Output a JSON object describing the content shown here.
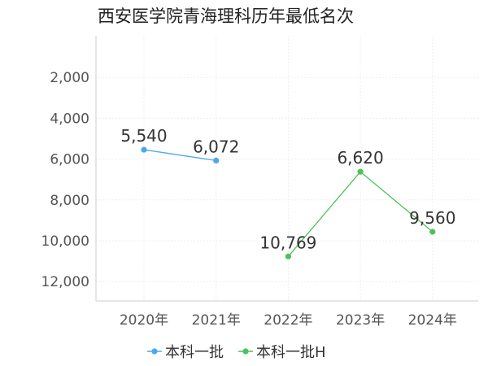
{
  "chart_data": {
    "type": "line",
    "title": "西安医学院青海理科历年最低名次",
    "categories": [
      "2020年",
      "2021年",
      "2022年",
      "2023年",
      "2024年"
    ],
    "series": [
      {
        "name": "本科一批",
        "color": "#4da6f0",
        "values": [
          5540,
          6072,
          null,
          null,
          null
        ]
      },
      {
        "name": "本科一批H",
        "color": "#4cc35a",
        "values": [
          null,
          null,
          10769,
          6620,
          9560
        ]
      }
    ],
    "y_ticks": [
      "2,000",
      "4,000",
      "6,000",
      "8,000",
      "10,000",
      "12,000"
    ],
    "y_tick_values": [
      2000,
      4000,
      6000,
      8000,
      10000,
      12000
    ],
    "ylim": [
      0,
      13000
    ],
    "y_reversed": true,
    "xlabel": "",
    "ylabel": "",
    "grid": true,
    "legend_position": "bottom"
  }
}
